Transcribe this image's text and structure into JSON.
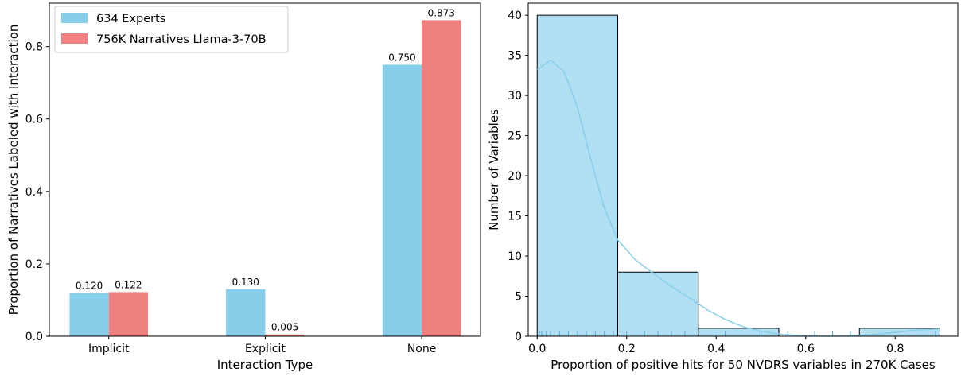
{
  "chart_data": [
    {
      "type": "bar",
      "xlabel": "Interaction Type",
      "ylabel": "Proportion of Narratives Labeled with Interaction",
      "categories": [
        "Implicit",
        "Explicit",
        "None"
      ],
      "series": [
        {
          "name": "634 Experts",
          "color": "#87ceeb",
          "values": [
            0.12,
            0.13,
            0.75
          ],
          "labels": [
            "0.120",
            "0.130",
            "0.750"
          ]
        },
        {
          "name": "756K Narratives Llama-3-70B",
          "color": "#f08080",
          "values": [
            0.122,
            0.005,
            0.873
          ],
          "labels": [
            "0.122",
            "0.005",
            "0.873"
          ]
        }
      ],
      "ylim": [
        0,
        0.92
      ],
      "yticks": [
        0.0,
        0.2,
        0.4,
        0.6,
        0.8
      ],
      "ytick_labels": [
        "0.0",
        "0.2",
        "0.4",
        "0.6",
        "0.8"
      ],
      "legend_position": "top-left",
      "grid": false
    },
    {
      "type": "histogram",
      "xlabel": "Proportion of positive hits for 50 NVDRS variables in 270K Cases",
      "ylabel": "Number of Variables",
      "bins": [
        {
          "start": 0.0,
          "end": 0.18,
          "count": 40
        },
        {
          "start": 0.18,
          "end": 0.36,
          "count": 8
        },
        {
          "start": 0.36,
          "end": 0.54,
          "count": 1
        },
        {
          "start": 0.54,
          "end": 0.72,
          "count": 0
        },
        {
          "start": 0.72,
          "end": 0.9,
          "count": 1
        }
      ],
      "kde": [
        [
          0.0,
          33.2
        ],
        [
          0.03,
          34.4
        ],
        [
          0.06,
          33.0
        ],
        [
          0.09,
          28.5
        ],
        [
          0.12,
          22.0
        ],
        [
          0.15,
          16.0
        ],
        [
          0.18,
          12.0
        ],
        [
          0.22,
          9.5
        ],
        [
          0.26,
          7.8
        ],
        [
          0.3,
          6.2
        ],
        [
          0.34,
          4.8
        ],
        [
          0.38,
          3.3
        ],
        [
          0.42,
          2.1
        ],
        [
          0.46,
          1.2
        ],
        [
          0.5,
          0.6
        ],
        [
          0.55,
          0.2
        ],
        [
          0.6,
          0.05
        ],
        [
          0.65,
          0.0
        ],
        [
          0.7,
          0.05
        ],
        [
          0.75,
          0.2
        ],
        [
          0.8,
          0.5
        ],
        [
          0.85,
          0.8
        ],
        [
          0.9,
          0.9
        ]
      ],
      "rug": [
        0.005,
        0.01,
        0.02,
        0.03,
        0.05,
        0.07,
        0.09,
        0.11,
        0.13,
        0.15,
        0.17,
        0.2,
        0.24,
        0.27,
        0.3,
        0.33,
        0.42,
        0.5,
        0.56,
        0.62,
        0.66,
        0.7,
        0.89
      ],
      "fill_color": "#87ceeb",
      "line_color": "#87ceeb",
      "xlim": [
        -0.02,
        0.94
      ],
      "ylim": [
        0,
        41.5
      ],
      "xticks": [
        0.0,
        0.2,
        0.4,
        0.6,
        0.8
      ],
      "xtick_labels": [
        "0.0",
        "0.2",
        "0.4",
        "0.6",
        "0.8"
      ],
      "yticks": [
        0,
        5,
        10,
        15,
        20,
        25,
        30,
        35,
        40
      ],
      "ytick_labels": [
        "0",
        "5",
        "10",
        "15",
        "20",
        "25",
        "30",
        "35",
        "40"
      ],
      "grid": false
    }
  ]
}
